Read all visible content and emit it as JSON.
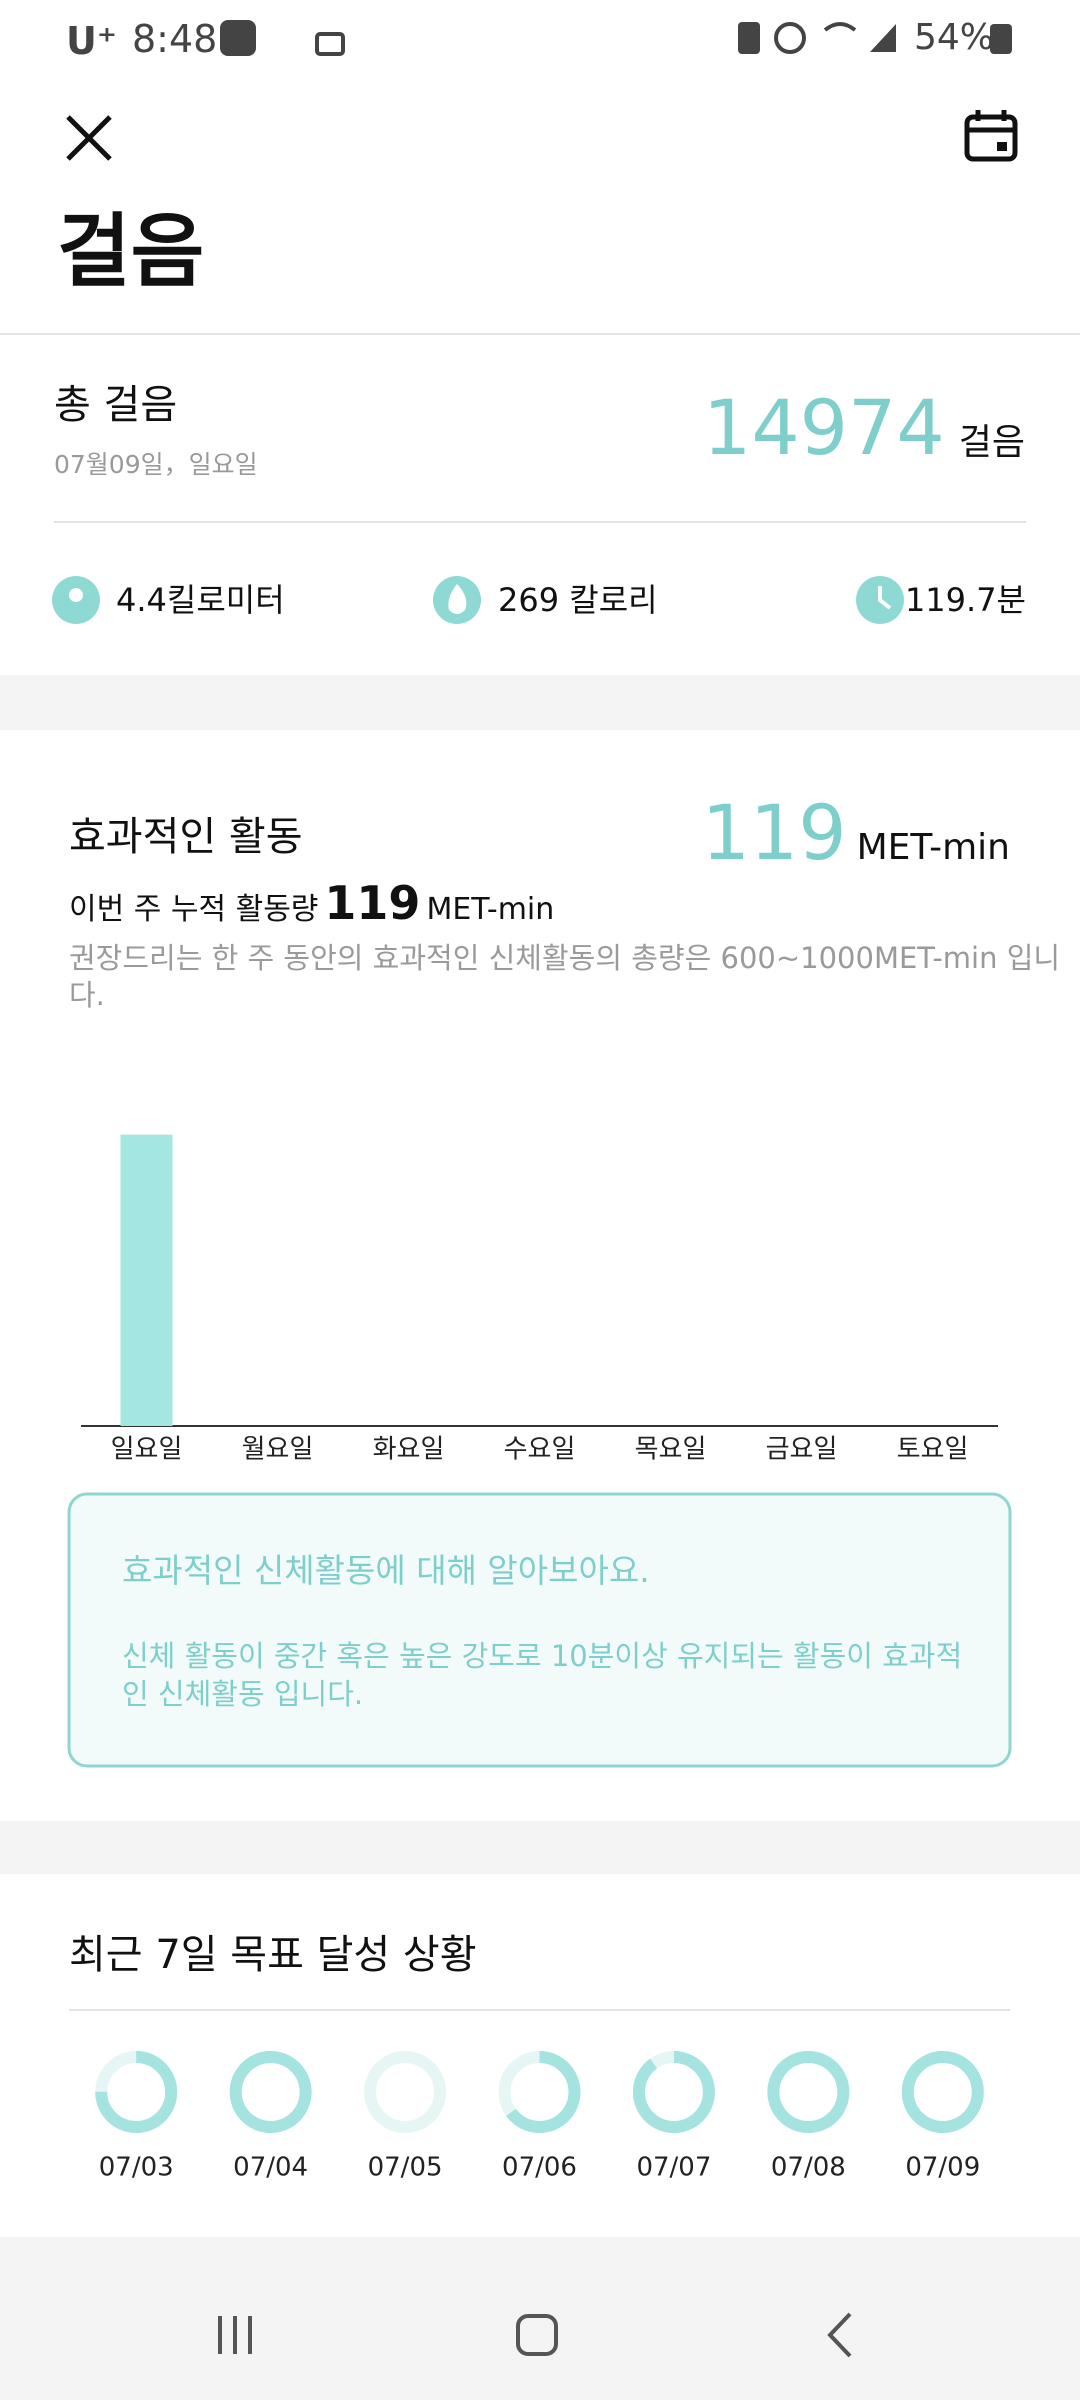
{
  "status_bar": {
    "carrier": "U⁺",
    "time": "8:48",
    "battery": "54%"
  },
  "header": {
    "title": "걸음"
  },
  "total_steps": {
    "label": "총 걸음",
    "date": "07월09일，일요일",
    "value": 14974,
    "unit": "걸음"
  },
  "stats": [
    "4.4킬로미터",
    "269 칼로리",
    "119.7분"
  ],
  "activity": {
    "title": "효과적인 활동",
    "value": 119,
    "unit": "MET-min",
    "weekly_label": "이번 주 누적 활동량",
    "weekly_value": 119,
    "weekly_unit": "MET-min",
    "note": "권장드리는 한 주 동안의 효과적인 신체활동의 총량은 600~1000MET-min 입니다."
  },
  "chart_data": [
    {
      "type": "bar",
      "categories": [
        "일요일",
        "월요일",
        "화요일",
        "수요일",
        "목요일",
        "금요일",
        "토요일"
      ],
      "values": [
        119,
        null,
        null,
        null,
        null,
        null,
        null
      ],
      "color": "#a4e6e1",
      "ylim": [
        0,
        145
      ]
    },
    {
      "type": "ring",
      "title": "최근 7일 목표 달성 상황",
      "categories": [
        "07/03",
        "07/04",
        "07/05",
        "07/06",
        "07/07",
        "07/08",
        "07/09"
      ],
      "values": [
        75,
        100,
        0,
        65,
        90,
        100,
        100
      ],
      "color": "#a4e3df",
      "track_color": "#e6f6f5"
    }
  ],
  "info_box": {
    "title": "효과적인 신체활동에 대해 알아보아요.",
    "body": "신체 활동이 중간 혹은 높은 강도로 10분이상 유지되는 활동이 효과적인 신체활동 입니다."
  }
}
